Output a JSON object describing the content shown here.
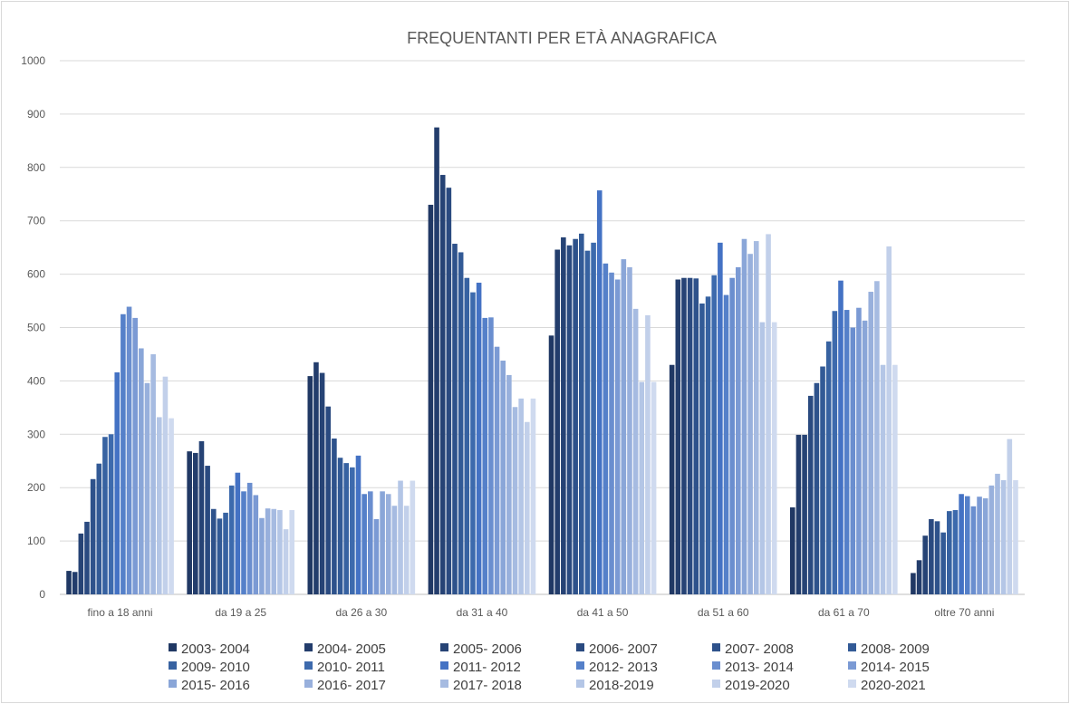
{
  "chart_data": {
    "type": "bar",
    "title": "FREQUENTANTI PER ETÀ ANAGRAFICA",
    "xlabel": "",
    "ylabel": "",
    "ylim": [
      0,
      1000
    ],
    "yticks": [
      0,
      100,
      200,
      300,
      400,
      500,
      600,
      700,
      800,
      900,
      1000
    ],
    "grid": true,
    "legend_position": "bottom",
    "categories": [
      "fino a 18 anni",
      "da 19 a 25",
      "da 26 a 30",
      "da 31 a 40",
      "da 41 a 50",
      "da 51 a 60",
      "da 61 a 70",
      "oltre 70 anni"
    ],
    "series": [
      {
        "name": "2003- 2004",
        "color": "#203864",
        "values": [
          44,
          268,
          409,
          730,
          485,
          430,
          163,
          40
        ]
      },
      {
        "name": "2004- 2005",
        "color": "#233d6c",
        "values": [
          42,
          265,
          435,
          875,
          646,
          590,
          299,
          64
        ]
      },
      {
        "name": "2005- 2006",
        "color": "#264375",
        "values": [
          114,
          287,
          415,
          786,
          669,
          593,
          299,
          110
        ]
      },
      {
        "name": "2006- 2007",
        "color": "#2a4a80",
        "values": [
          136,
          241,
          352,
          762,
          654,
          593,
          372,
          141
        ]
      },
      {
        "name": "2007- 2008",
        "color": "#2e528b",
        "values": [
          216,
          160,
          292,
          657,
          666,
          592,
          396,
          137
        ]
      },
      {
        "name": "2008- 2009",
        "color": "#325a96",
        "values": [
          245,
          142,
          256,
          641,
          676,
          545,
          427,
          116
        ]
      },
      {
        "name": "2009- 2010",
        "color": "#3762a1",
        "values": [
          295,
          153,
          246,
          593,
          644,
          558,
          474,
          156
        ]
      },
      {
        "name": "2010- 2011",
        "color": "#3d6aad",
        "values": [
          300,
          204,
          238,
          566,
          659,
          598,
          531,
          158
        ]
      },
      {
        "name": "2011- 2012",
        "color": "#4472c4",
        "values": [
          416,
          228,
          260,
          584,
          757,
          659,
          588,
          188
        ]
      },
      {
        "name": "2012- 2013",
        "color": "#5580c9",
        "values": [
          525,
          193,
          188,
          518,
          620,
          561,
          533,
          184
        ]
      },
      {
        "name": "2013- 2014",
        "color": "#6a8ecf",
        "values": [
          539,
          209,
          193,
          519,
          603,
          593,
          500,
          165
        ]
      },
      {
        "name": "2014- 2015",
        "color": "#7b9ad4",
        "values": [
          518,
          186,
          141,
          464,
          590,
          613,
          537,
          183
        ]
      },
      {
        "name": "2015- 2016",
        "color": "#8aa6d8",
        "values": [
          461,
          143,
          193,
          438,
          628,
          666,
          513,
          180
        ]
      },
      {
        "name": "2016- 2017",
        "color": "#98b0dc",
        "values": [
          396,
          161,
          188,
          411,
          613,
          638,
          567,
          204
        ]
      },
      {
        "name": "2017- 2018",
        "color": "#a6bbe1",
        "values": [
          450,
          160,
          166,
          351,
          535,
          662,
          587,
          226
        ]
      },
      {
        "name": "2018-2019",
        "color": "#b4c6e6",
        "values": [
          332,
          158,
          213,
          367,
          398,
          510,
          430,
          214
        ]
      },
      {
        "name": "2019-2020",
        "color": "#c2d0ea",
        "values": [
          408,
          122,
          166,
          323,
          523,
          675,
          652,
          291
        ]
      },
      {
        "name": "2020-2021",
        "color": "#cfdaef",
        "values": [
          330,
          158,
          213,
          367,
          398,
          510,
          430,
          214
        ]
      }
    ]
  }
}
